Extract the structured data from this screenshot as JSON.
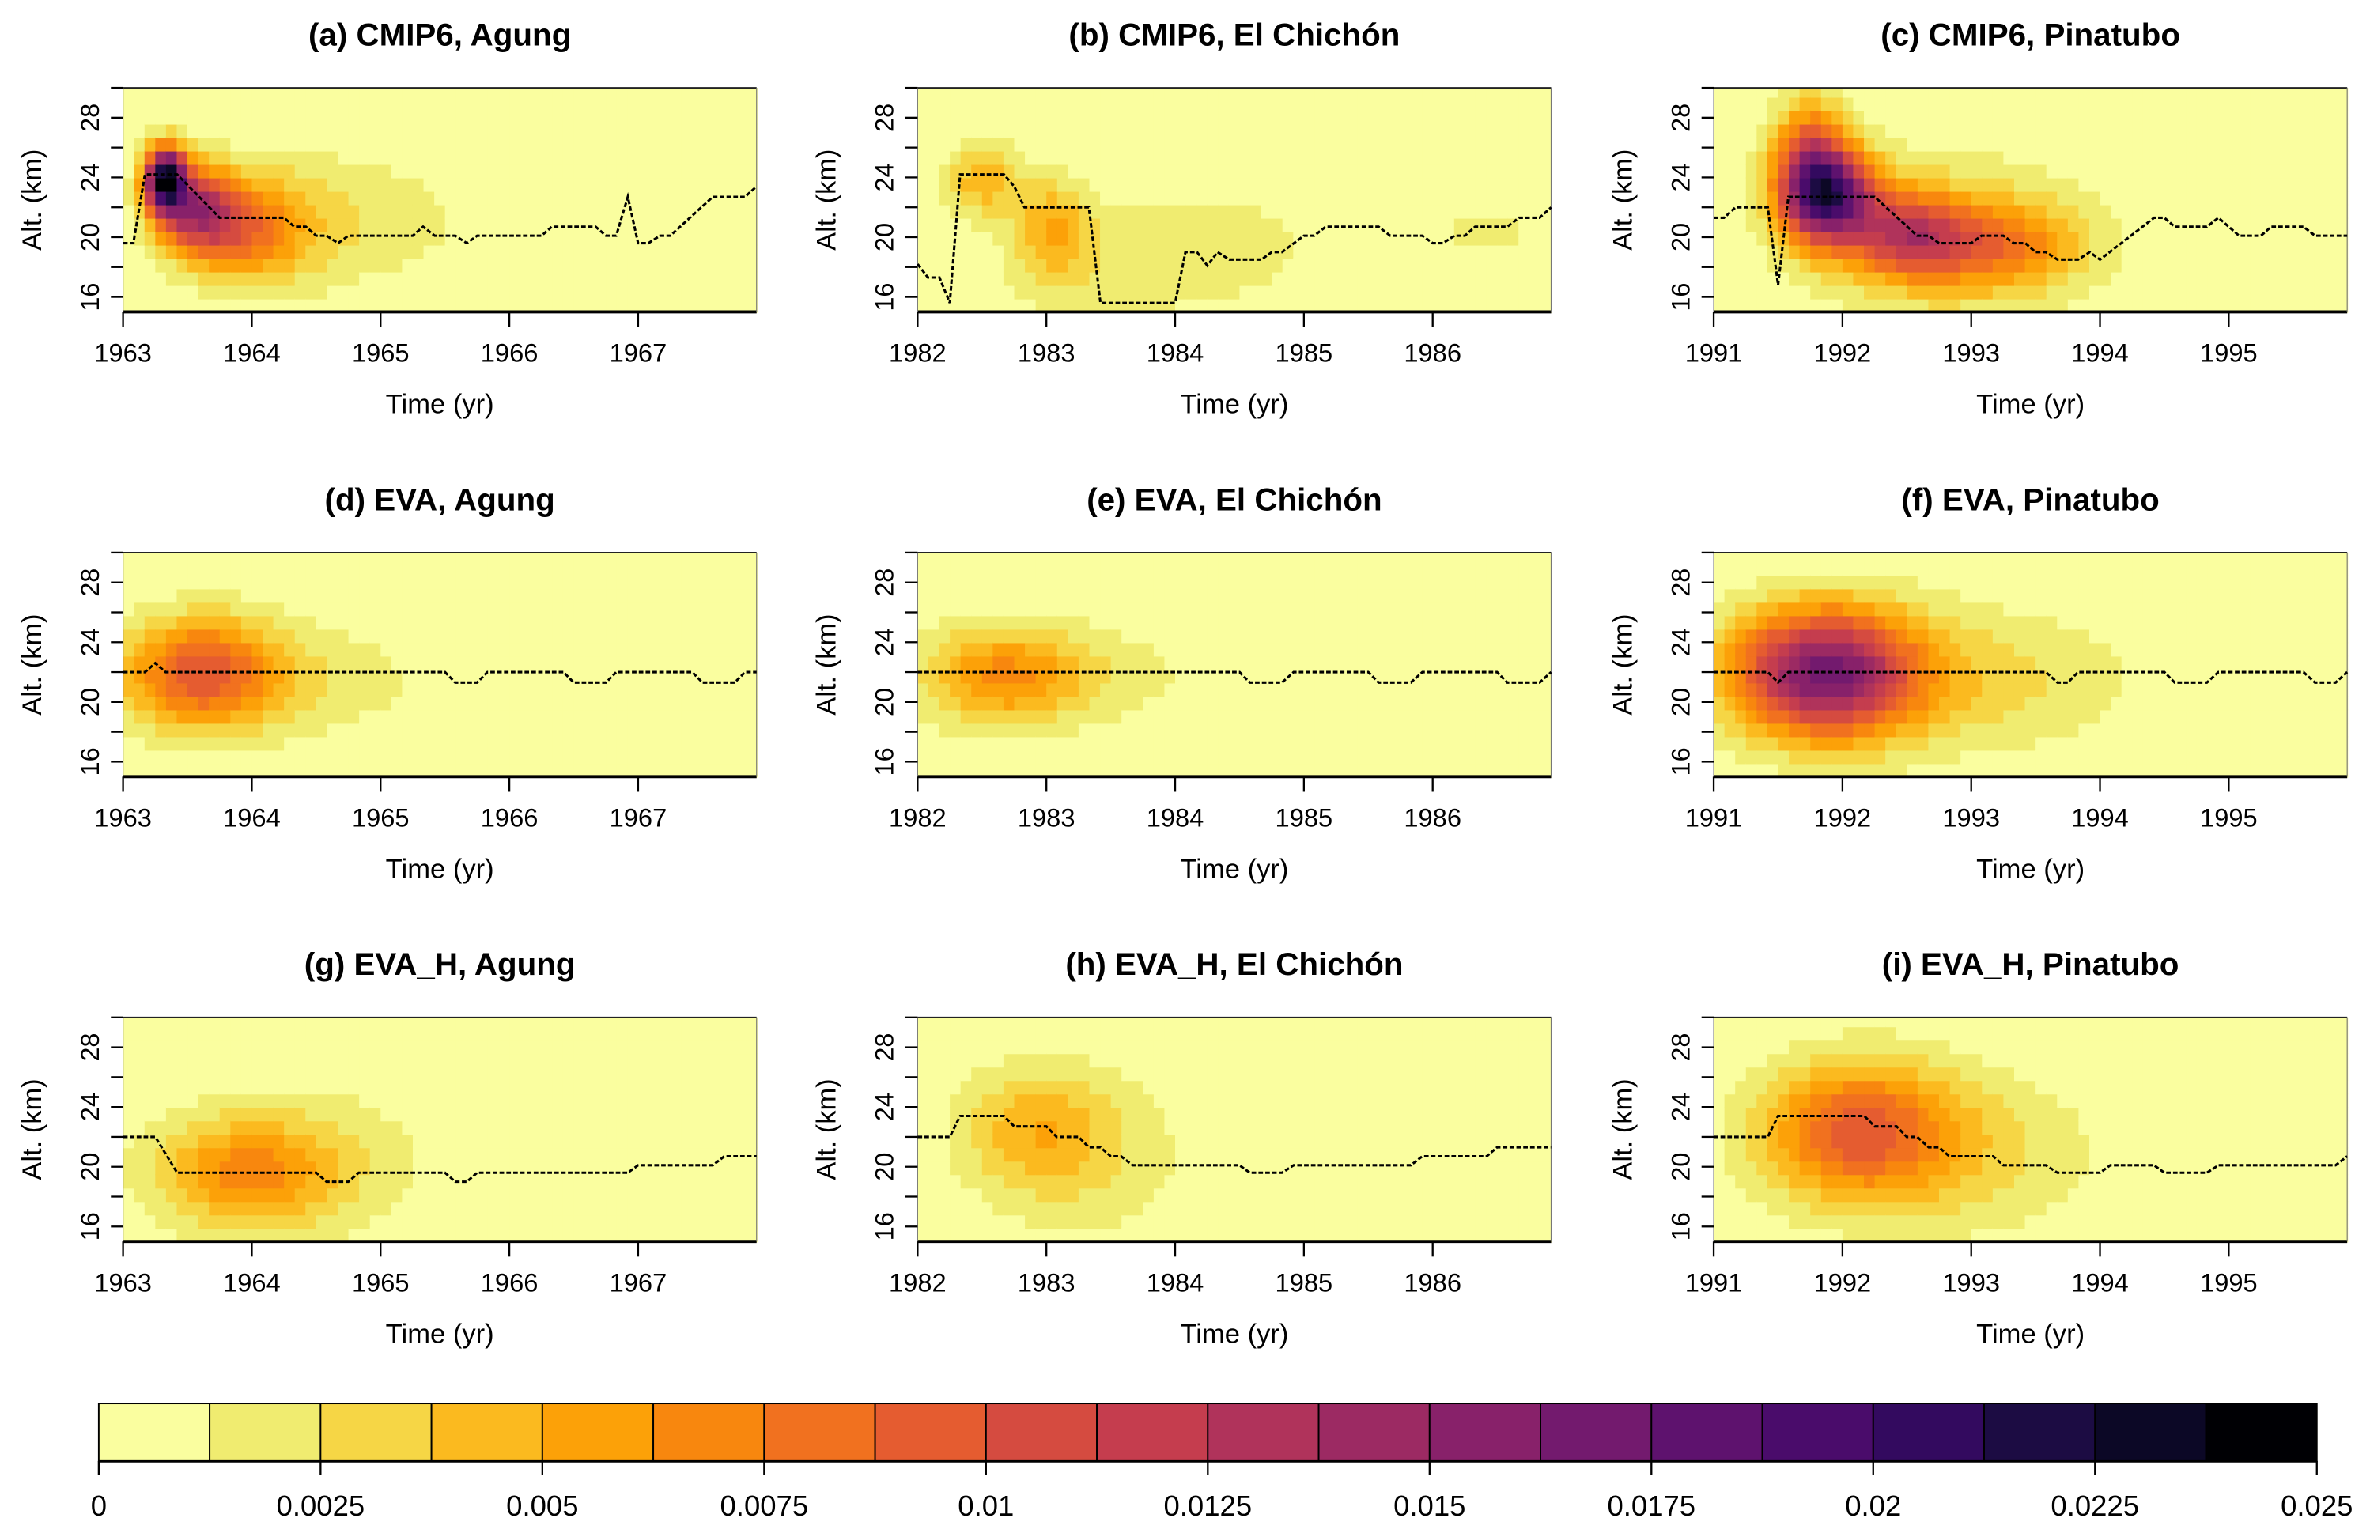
{
  "chart_data": {
    "type": "heatmap",
    "figure_layout": "3x3 grid of time-altitude heatmaps with shared horizontal colorbar",
    "colorbar": {
      "min": 0,
      "max": 0.025,
      "bin_width": 0.00125,
      "colors": [
        "#FAFE9F",
        "#F0EC70",
        "#F6D645",
        "#FBBA1F",
        "#FCA108",
        "#F8870E",
        "#F1711F",
        "#E55C30",
        "#D54B40",
        "#C53D4E",
        "#B0335B",
        "#9C2A63",
        "#88216A",
        "#731A6E",
        "#5E126E",
        "#4A0C6B",
        "#330A5F",
        "#1C0C43",
        "#0C0826",
        "#000004"
      ],
      "tick_values": [
        0,
        0.0025,
        0.005,
        0.0075,
        0.01,
        0.0125,
        0.015,
        0.0175,
        0.02,
        0.0225,
        0.025
      ],
      "tick_labels": [
        "0",
        "0.0025",
        "0.005",
        "0.0075",
        "0.01",
        "0.0125",
        "0.015",
        "0.0175",
        "0.02",
        "0.0225",
        "0.025"
      ],
      "placement": "bottom"
    },
    "shared": {
      "xlabel": "Time (yr)",
      "ylabel": "Alt. (km)",
      "ylim": [
        15,
        30
      ],
      "y_ticks_labeled": [
        16,
        20,
        24,
        28
      ],
      "y_ticks_minor": [
        18,
        22,
        26,
        30
      ],
      "time_step_years": 0.0833333,
      "alt_step_km": 0.9,
      "line_style": "dashed black"
    },
    "panels": [
      {
        "id": "a",
        "title": "(a) CMIP6, Agung",
        "row": 0,
        "col": 0,
        "xlim": [
          1963,
          1967.92
        ],
        "x_ticks": [
          1963,
          1964,
          1965,
          1966,
          1967
        ],
        "x_tick_labels": [
          "1963",
          "1964",
          "1965",
          "1966",
          "1967"
        ],
        "field_components": [
          {
            "t": 1963.33,
            "alt": 24.0,
            "peak": 0.0212,
            "sig_t": 0.11,
            "sig_alt": 1.5
          },
          {
            "t": 1963.55,
            "alt": 22.0,
            "peak": 0.011,
            "sig_t": 0.22,
            "sig_alt": 2.0
          },
          {
            "t": 1963.9,
            "alt": 20.5,
            "peak": 0.0062,
            "sig_t": 0.32,
            "sig_alt": 2.3
          },
          {
            "t": 1964.3,
            "alt": 21.0,
            "peak": 0.003,
            "sig_t": 0.45,
            "sig_alt": 3.4
          },
          {
            "t": 1965.2,
            "alt": 21.3,
            "peak": 0.0016,
            "sig_t": 0.38,
            "sig_alt": 3.0
          }
        ],
        "line": {
          "t": [
            1963.0,
            1963.08,
            1963.17,
            1963.42,
            1963.75,
            1964.25,
            1964.33,
            1964.42,
            1964.5,
            1964.58,
            1964.67,
            1964.75,
            1965.25,
            1965.33,
            1965.42,
            1965.58,
            1965.67,
            1965.75,
            1966.25,
            1966.33,
            1966.67,
            1966.75,
            1966.83,
            1966.92,
            1967.0,
            1967.08,
            1967.17,
            1967.25,
            1967.58,
            1967.83,
            1967.92
          ],
          "alt": [
            19.6,
            19.6,
            24.2,
            24.2,
            21.3,
            21.3,
            20.7,
            20.7,
            20.1,
            20.1,
            19.6,
            20.1,
            20.1,
            20.7,
            20.1,
            20.1,
            19.6,
            20.1,
            20.1,
            20.7,
            20.7,
            20.1,
            20.1,
            22.7,
            19.6,
            19.6,
            20.1,
            20.1,
            22.7,
            22.7,
            23.4
          ]
        }
      },
      {
        "id": "b",
        "title": "(b) CMIP6, El Chichón",
        "row": 0,
        "col": 1,
        "xlim": [
          1982,
          1986.92
        ],
        "x_ticks": [
          1982,
          1983,
          1984,
          1985,
          1986
        ],
        "x_tick_labels": [
          "1982",
          "1983",
          "1984",
          "1985",
          "1986"
        ],
        "field_components": [
          {
            "t": 1982.5,
            "alt": 24.0,
            "peak": 0.0046,
            "sig_t": 0.2,
            "sig_alt": 1.8
          },
          {
            "t": 1983.05,
            "alt": 20.8,
            "peak": 0.0043,
            "sig_t": 0.2,
            "sig_alt": 2.3
          },
          {
            "t": 1983.4,
            "alt": 18.0,
            "peak": 0.0019,
            "sig_t": 0.6,
            "sig_alt": 3.4
          },
          {
            "t": 1984.5,
            "alt": 19.5,
            "peak": 0.0016,
            "sig_t": 0.5,
            "sig_alt": 3.0
          },
          {
            "t": 1986.4,
            "alt": 20.5,
            "peak": 0.0015,
            "sig_t": 0.45,
            "sig_alt": 1.7
          }
        ],
        "line": {
          "t": [
            1982.0,
            1982.08,
            1982.17,
            1982.25,
            1982.33,
            1982.67,
            1982.75,
            1982.83,
            1983.33,
            1983.42,
            1984.0,
            1984.08,
            1984.17,
            1984.25,
            1984.33,
            1984.42,
            1984.67,
            1984.75,
            1984.83,
            1985.0,
            1985.08,
            1985.17,
            1985.58,
            1985.67,
            1985.92,
            1986.0,
            1986.08,
            1986.17,
            1986.25,
            1986.33,
            1986.58,
            1986.67,
            1986.83,
            1986.92
          ],
          "alt": [
            18.2,
            17.3,
            17.3,
            15.6,
            24.2,
            24.2,
            23.4,
            22.0,
            22.0,
            15.6,
            15.6,
            19.0,
            19.0,
            18.1,
            19.0,
            18.5,
            18.5,
            19.0,
            19.0,
            20.1,
            20.1,
            20.7,
            20.7,
            20.1,
            20.1,
            19.6,
            19.6,
            20.1,
            20.1,
            20.7,
            20.7,
            21.3,
            21.3,
            22.0
          ]
        }
      },
      {
        "id": "c",
        "title": "(c) CMIP6, Pinatubo",
        "row": 0,
        "col": 2,
        "xlim": [
          1991,
          1995.92
        ],
        "x_ticks": [
          1991,
          1992,
          1993,
          1994,
          1995
        ],
        "x_tick_labels": [
          "1991",
          "1992",
          "1993",
          "1994",
          "1995"
        ],
        "field_components": [
          {
            "t": 1991.9,
            "alt": 22.8,
            "peak": 0.0158,
            "sig_t": 0.25,
            "sig_alt": 2.2
          },
          {
            "t": 1991.75,
            "alt": 25.0,
            "peak": 0.009,
            "sig_t": 0.2,
            "sig_alt": 3.0
          },
          {
            "t": 1992.5,
            "alt": 20.2,
            "peak": 0.009,
            "sig_t": 0.3,
            "sig_alt": 2.0
          },
          {
            "t": 1993.2,
            "alt": 19.5,
            "peak": 0.006,
            "sig_t": 0.45,
            "sig_alt": 2.0
          },
          {
            "t": 1992.8,
            "alt": 20.0,
            "peak": 0.003,
            "sig_t": 0.8,
            "sig_alt": 4.2
          }
        ],
        "line": {
          "t": [
            1991.0,
            1991.08,
            1991.17,
            1991.42,
            1991.5,
            1991.58,
            1992.25,
            1992.58,
            1992.67,
            1992.75,
            1993.0,
            1993.08,
            1993.25,
            1993.33,
            1993.42,
            1993.5,
            1993.58,
            1993.67,
            1993.83,
            1993.92,
            1994.0,
            1994.42,
            1994.5,
            1994.58,
            1994.83,
            1994.92,
            1995.0,
            1995.08,
            1995.25,
            1995.33,
            1995.58,
            1995.67,
            1995.92
          ],
          "alt": [
            21.3,
            21.3,
            22.0,
            22.0,
            16.8,
            22.7,
            22.7,
            20.1,
            20.1,
            19.6,
            19.6,
            20.1,
            20.1,
            19.6,
            19.6,
            19.0,
            19.0,
            18.5,
            18.5,
            19.0,
            18.5,
            21.3,
            21.3,
            20.7,
            20.7,
            21.3,
            20.7,
            20.1,
            20.1,
            20.7,
            20.7,
            20.1,
            20.1
          ]
        }
      },
      {
        "id": "d",
        "title": "(d) EVA, Agung",
        "row": 1,
        "col": 0,
        "xlim": [
          1963,
          1967.92
        ],
        "x_ticks": [
          1963,
          1964,
          1965,
          1966,
          1967
        ],
        "x_tick_labels": [
          "1963",
          "1964",
          "1965",
          "1966",
          "1967"
        ],
        "field_components": [
          {
            "t": 1963.6,
            "alt": 22.0,
            "peak": 0.0088,
            "sig_t": 0.42,
            "sig_alt": 2.6
          },
          {
            "t": 1964.4,
            "alt": 21.5,
            "peak": 0.002,
            "sig_t": 0.8,
            "sig_alt": 3.0
          }
        ],
        "line": {
          "t": [
            1963.0,
            1963.17,
            1963.25,
            1963.33,
            1965.5,
            1965.58,
            1965.75,
            1965.83,
            1966.42,
            1966.5,
            1966.75,
            1966.83,
            1967.42,
            1967.5,
            1967.75,
            1967.83,
            1967.92
          ],
          "alt": [
            22.0,
            22.0,
            22.6,
            22.0,
            22.0,
            21.3,
            21.3,
            22.0,
            22.0,
            21.3,
            21.3,
            22.0,
            22.0,
            21.3,
            21.3,
            22.0,
            22.0
          ]
        }
      },
      {
        "id": "e",
        "title": "(e) EVA, El Chichón",
        "row": 1,
        "col": 1,
        "xlim": [
          1982,
          1986.92
        ],
        "x_ticks": [
          1982,
          1983,
          1984,
          1985,
          1986
        ],
        "x_tick_labels": [
          "1982",
          "1983",
          "1984",
          "1985",
          "1986"
        ],
        "field_components": [
          {
            "t": 1982.65,
            "alt": 21.8,
            "peak": 0.006,
            "sig_t": 0.45,
            "sig_alt": 2.4
          },
          {
            "t": 1983.5,
            "alt": 21.8,
            "peak": 0.0015,
            "sig_t": 0.7,
            "sig_alt": 2.5
          }
        ],
        "line": {
          "t": [
            1982.0,
            1984.5,
            1984.58,
            1984.83,
            1984.92,
            1985.5,
            1985.58,
            1985.83,
            1985.92,
            1986.5,
            1986.58,
            1986.83,
            1986.92
          ],
          "alt": [
            22.0,
            22.0,
            21.3,
            21.3,
            22.0,
            22.0,
            21.3,
            21.3,
            22.0,
            22.0,
            21.3,
            21.3,
            22.0
          ]
        }
      },
      {
        "id": "f",
        "title": "(f) EVA, Pinatubo",
        "row": 1,
        "col": 2,
        "xlim": [
          1991,
          1995.92
        ],
        "x_ticks": [
          1991,
          1992,
          1993,
          1994,
          1995
        ],
        "x_tick_labels": [
          "1991",
          "1992",
          "1993",
          "1994",
          "1995"
        ],
        "field_components": [
          {
            "t": 1991.85,
            "alt": 22.0,
            "peak": 0.0158,
            "sig_t": 0.5,
            "sig_alt": 3.0
          },
          {
            "t": 1993.0,
            "alt": 21.5,
            "peak": 0.003,
            "sig_t": 0.9,
            "sig_alt": 3.5
          }
        ],
        "line": {
          "t": [
            1991.0,
            1991.42,
            1991.5,
            1991.58,
            1993.58,
            1993.67,
            1993.75,
            1993.83,
            1994.5,
            1994.58,
            1994.83,
            1994.92,
            1995.58,
            1995.67,
            1995.83,
            1995.92
          ],
          "alt": [
            22.0,
            22.0,
            21.3,
            22.0,
            22.0,
            21.3,
            21.3,
            22.0,
            22.0,
            21.3,
            21.3,
            22.0,
            22.0,
            21.3,
            21.3,
            22.0
          ]
        }
      },
      {
        "id": "g",
        "title": "(g) EVA_H, Agung",
        "row": 2,
        "col": 0,
        "xlim": [
          1963,
          1967.92
        ],
        "x_ticks": [
          1963,
          1964,
          1965,
          1966,
          1967
        ],
        "x_tick_labels": [
          "1963",
          "1964",
          "1965",
          "1966",
          "1967"
        ],
        "field_components": [
          {
            "t": 1963.95,
            "alt": 19.6,
            "peak": 0.0056,
            "sig_t": 0.5,
            "sig_alt": 2.6
          },
          {
            "t": 1964.5,
            "alt": 20.5,
            "peak": 0.0018,
            "sig_t": 0.8,
            "sig_alt": 4.0
          }
        ],
        "line": {
          "t": [
            1963.0,
            1963.25,
            1963.42,
            1964.5,
            1964.58,
            1964.75,
            1964.83,
            1965.5,
            1965.58,
            1965.67,
            1965.75,
            1966.92,
            1967.0,
            1967.58,
            1967.67,
            1967.92
          ],
          "alt": [
            22.0,
            22.0,
            19.6,
            19.6,
            19.0,
            19.0,
            19.6,
            19.6,
            19.0,
            19.0,
            19.6,
            19.6,
            20.1,
            20.1,
            20.7,
            20.7
          ]
        }
      },
      {
        "id": "h",
        "title": "(h) EVA_H, El Chichón",
        "row": 2,
        "col": 1,
        "xlim": [
          1982,
          1986.92
        ],
        "x_ticks": [
          1982,
          1983,
          1984,
          1985,
          1986
        ],
        "x_tick_labels": [
          "1982",
          "1983",
          "1984",
          "1985",
          "1986"
        ],
        "field_components": [
          {
            "t": 1982.9,
            "alt": 22.5,
            "peak": 0.0039,
            "sig_t": 0.42,
            "sig_alt": 3.0
          },
          {
            "t": 1983.4,
            "alt": 20.5,
            "peak": 0.0018,
            "sig_t": 0.6,
            "sig_alt": 4.5
          }
        ],
        "line": {
          "t": [
            1982.0,
            1982.25,
            1982.33,
            1982.67,
            1982.75,
            1983.0,
            1983.08,
            1983.25,
            1983.33,
            1983.42,
            1983.5,
            1983.58,
            1983.67,
            1984.5,
            1984.58,
            1984.83,
            1984.92,
            1985.83,
            1985.92,
            1986.42,
            1986.5,
            1986.92
          ],
          "alt": [
            22.0,
            22.0,
            23.4,
            23.4,
            22.7,
            22.7,
            22.0,
            22.0,
            21.3,
            21.3,
            20.7,
            20.7,
            20.1,
            20.1,
            19.6,
            19.6,
            20.1,
            20.1,
            20.7,
            20.7,
            21.3,
            21.3
          ]
        }
      },
      {
        "id": "i",
        "title": "(i) EVA_H, Pinatubo",
        "row": 2,
        "col": 2,
        "xlim": [
          1991,
          1995.92
        ],
        "x_ticks": [
          1991,
          1992,
          1993,
          1994,
          1995
        ],
        "x_tick_labels": [
          "1991",
          "1992",
          "1993",
          "1994",
          "1995"
        ],
        "field_components": [
          {
            "t": 1992.1,
            "alt": 22.5,
            "peak": 0.0083,
            "sig_t": 0.52,
            "sig_alt": 3.2
          },
          {
            "t": 1992.9,
            "alt": 21.0,
            "peak": 0.0028,
            "sig_t": 0.8,
            "sig_alt": 4.0
          }
        ],
        "line": {
          "t": [
            1991.0,
            1991.42,
            1991.5,
            1992.17,
            1992.25,
            1992.42,
            1992.5,
            1992.58,
            1992.67,
            1992.75,
            1992.83,
            1993.17,
            1993.25,
            1993.58,
            1993.67,
            1994.0,
            1994.08,
            1994.42,
            1994.5,
            1994.83,
            1994.92,
            1995.83,
            1995.92
          ],
          "alt": [
            22.0,
            22.0,
            23.4,
            23.4,
            22.7,
            22.7,
            22.0,
            22.0,
            21.3,
            21.3,
            20.7,
            20.7,
            20.1,
            20.1,
            19.6,
            19.6,
            20.1,
            20.1,
            19.6,
            19.6,
            20.1,
            20.1,
            20.7
          ]
        }
      }
    ]
  }
}
